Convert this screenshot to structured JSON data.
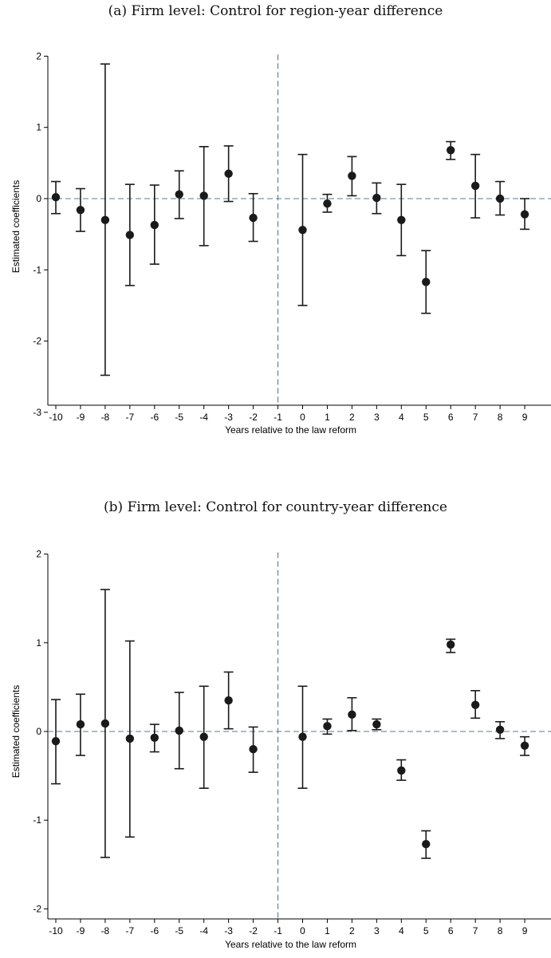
{
  "panels": [
    {
      "title": "(a) Firm level: Control for region-year difference"
    },
    {
      "title": "(b) Firm level: Control for country-year difference"
    }
  ],
  "colors": {
    "point": "#1a1a1a",
    "reference_line": "#5b7891",
    "axis": "#000000",
    "background": "#ffffff"
  },
  "chart_data": [
    {
      "type": "scatter",
      "title": "(a) Firm level: Control for region-year difference",
      "xlabel": "Years relative to the law reform",
      "ylabel": "Estimated coefficients",
      "xlim": [
        -10,
        9
      ],
      "ylim": [
        -3,
        2
      ],
      "yticks": [
        -3,
        -2,
        -1,
        0,
        1,
        2
      ],
      "xticks": [
        -10,
        -9,
        -8,
        -7,
        -6,
        -5,
        -4,
        -3,
        -2,
        -1,
        0,
        1,
        2,
        3,
        4,
        5,
        6,
        7,
        8,
        9
      ],
      "reference_x": -1,
      "reference_y": 0,
      "error_bars": true,
      "grid": false,
      "points": [
        {
          "x": -10,
          "y": 0.02,
          "lo": -0.21,
          "hi": 0.24
        },
        {
          "x": -9,
          "y": -0.16,
          "lo": -0.46,
          "hi": 0.14
        },
        {
          "x": -8,
          "y": -0.3,
          "lo": -2.48,
          "hi": 1.89
        },
        {
          "x": -7,
          "y": -0.51,
          "lo": -1.22,
          "hi": 0.2
        },
        {
          "x": -6,
          "y": -0.37,
          "lo": -0.92,
          "hi": 0.19
        },
        {
          "x": -5,
          "y": 0.06,
          "lo": -0.28,
          "hi": 0.39
        },
        {
          "x": -4,
          "y": 0.04,
          "lo": -0.66,
          "hi": 0.73
        },
        {
          "x": -3,
          "y": 0.35,
          "lo": -0.04,
          "hi": 0.74
        },
        {
          "x": -2,
          "y": -0.27,
          "lo": -0.6,
          "hi": 0.07
        },
        {
          "x": 0,
          "y": -0.44,
          "lo": -1.5,
          "hi": 0.62
        },
        {
          "x": 1,
          "y": -0.07,
          "lo": -0.19,
          "hi": 0.06
        },
        {
          "x": 2,
          "y": 0.32,
          "lo": 0.04,
          "hi": 0.59
        },
        {
          "x": 3,
          "y": 0.01,
          "lo": -0.21,
          "hi": 0.22
        },
        {
          "x": 4,
          "y": -0.3,
          "lo": -0.8,
          "hi": 0.2
        },
        {
          "x": 5,
          "y": -1.17,
          "lo": -1.61,
          "hi": -0.73
        },
        {
          "x": 6,
          "y": 0.68,
          "lo": 0.55,
          "hi": 0.8
        },
        {
          "x": 7,
          "y": 0.18,
          "lo": -0.27,
          "hi": 0.62
        },
        {
          "x": 8,
          "y": 0.0,
          "lo": -0.23,
          "hi": 0.24
        },
        {
          "x": 9,
          "y": -0.22,
          "lo": -0.43,
          "hi": 0.0
        }
      ]
    },
    {
      "type": "scatter",
      "title": "(b) Firm level: Control for country-year difference",
      "xlabel": "Years relative to the law reform",
      "ylabel": "Estimated coefficients",
      "xlim": [
        -10,
        9
      ],
      "ylim": [
        -2,
        2
      ],
      "yticks": [
        -2,
        -1,
        0,
        1,
        2
      ],
      "xticks": [
        -10,
        -9,
        -8,
        -7,
        -6,
        -5,
        -4,
        -3,
        -2,
        -1,
        0,
        1,
        2,
        3,
        4,
        5,
        6,
        7,
        8,
        9
      ],
      "reference_x": -1,
      "reference_y": 0,
      "error_bars": true,
      "grid": false,
      "points": [
        {
          "x": -10,
          "y": -0.11,
          "lo": -0.59,
          "hi": 0.36
        },
        {
          "x": -9,
          "y": 0.08,
          "lo": -0.27,
          "hi": 0.42
        },
        {
          "x": -8,
          "y": 0.09,
          "lo": -1.42,
          "hi": 1.6
        },
        {
          "x": -7,
          "y": -0.08,
          "lo": -1.19,
          "hi": 1.02
        },
        {
          "x": -6,
          "y": -0.07,
          "lo": -0.23,
          "hi": 0.08
        },
        {
          "x": -5,
          "y": 0.01,
          "lo": -0.42,
          "hi": 0.44
        },
        {
          "x": -4,
          "y": -0.06,
          "lo": -0.64,
          "hi": 0.51
        },
        {
          "x": -3,
          "y": 0.35,
          "lo": 0.03,
          "hi": 0.67
        },
        {
          "x": -2,
          "y": -0.2,
          "lo": -0.46,
          "hi": 0.05
        },
        {
          "x": 0,
          "y": -0.06,
          "lo": -0.64,
          "hi": 0.51
        },
        {
          "x": 1,
          "y": 0.06,
          "lo": -0.03,
          "hi": 0.14
        },
        {
          "x": 2,
          "y": 0.19,
          "lo": 0.01,
          "hi": 0.38
        },
        {
          "x": 3,
          "y": 0.08,
          "lo": 0.02,
          "hi": 0.14
        },
        {
          "x": 4,
          "y": -0.44,
          "lo": -0.55,
          "hi": -0.32
        },
        {
          "x": 5,
          "y": -1.27,
          "lo": -1.43,
          "hi": -1.12
        },
        {
          "x": 6,
          "y": 0.98,
          "lo": 0.89,
          "hi": 1.04
        },
        {
          "x": 7,
          "y": 0.3,
          "lo": 0.15,
          "hi": 0.46
        },
        {
          "x": 8,
          "y": 0.02,
          "lo": -0.08,
          "hi": 0.11
        },
        {
          "x": 9,
          "y": -0.16,
          "lo": -0.27,
          "hi": -0.06
        }
      ]
    }
  ]
}
